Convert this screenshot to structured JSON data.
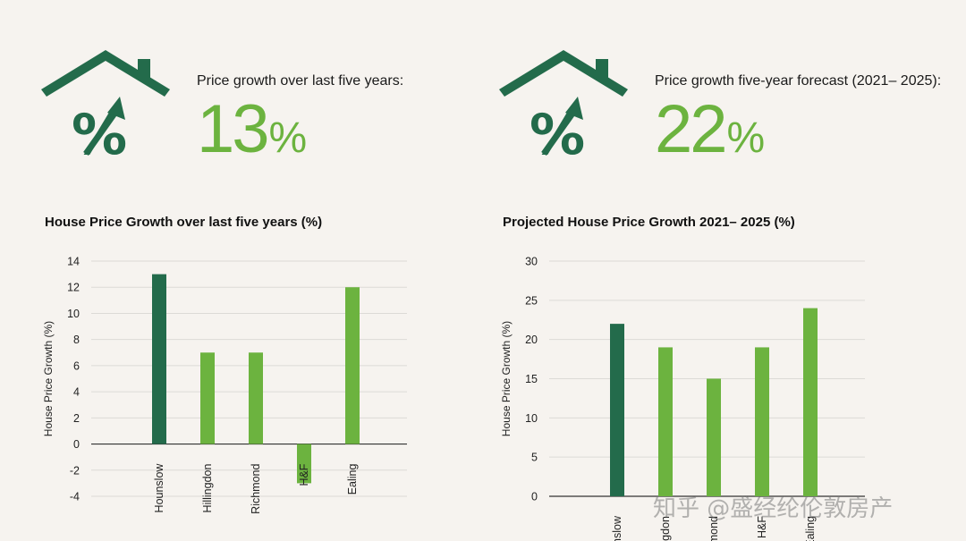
{
  "colors": {
    "background": "#f6f3ef",
    "dark_green": "#236b4b",
    "light_green": "#6cb33f",
    "grid": "#dcdad6",
    "zero_line": "#333333"
  },
  "stats": [
    {
      "label": "Price growth over last five years:",
      "value": "13",
      "unit": "%",
      "icon": "house-percent-icon"
    },
    {
      "label": "Price growth five-year forecast (2021– 2025):",
      "value": "22",
      "unit": "%",
      "icon": "house-percent-icon"
    }
  ],
  "chart_data": [
    {
      "type": "bar",
      "title": "House Price Growth over last five years (%)",
      "ylabel": "House Price Growth (%)",
      "xlabel": "",
      "categories": [
        "Hounslow",
        "Hillingdon",
        "Richmond",
        "H&F",
        "Ealing"
      ],
      "values": [
        13,
        7,
        7,
        -3,
        12
      ],
      "highlight": "Hounslow",
      "ylim": [
        -4,
        14
      ],
      "yticks": [
        14,
        12,
        10,
        8,
        6,
        4,
        2,
        0,
        -2,
        -4
      ],
      "grid": true
    },
    {
      "type": "bar",
      "title": "Projected House Price Growth 2021– 2025 (%)",
      "ylabel": "House Price Growth (%)",
      "xlabel": "",
      "categories": [
        "Hounslow",
        "Hillingdon",
        "Richmond",
        "H&F",
        "Ealing"
      ],
      "values": [
        22,
        19,
        15,
        19,
        24
      ],
      "highlight": "Hounslow",
      "ylim": [
        0,
        30
      ],
      "yticks": [
        30,
        25,
        20,
        15,
        10,
        5,
        0
      ],
      "grid": true
    }
  ],
  "watermark": "知乎 @盛经纶伦敦房产"
}
